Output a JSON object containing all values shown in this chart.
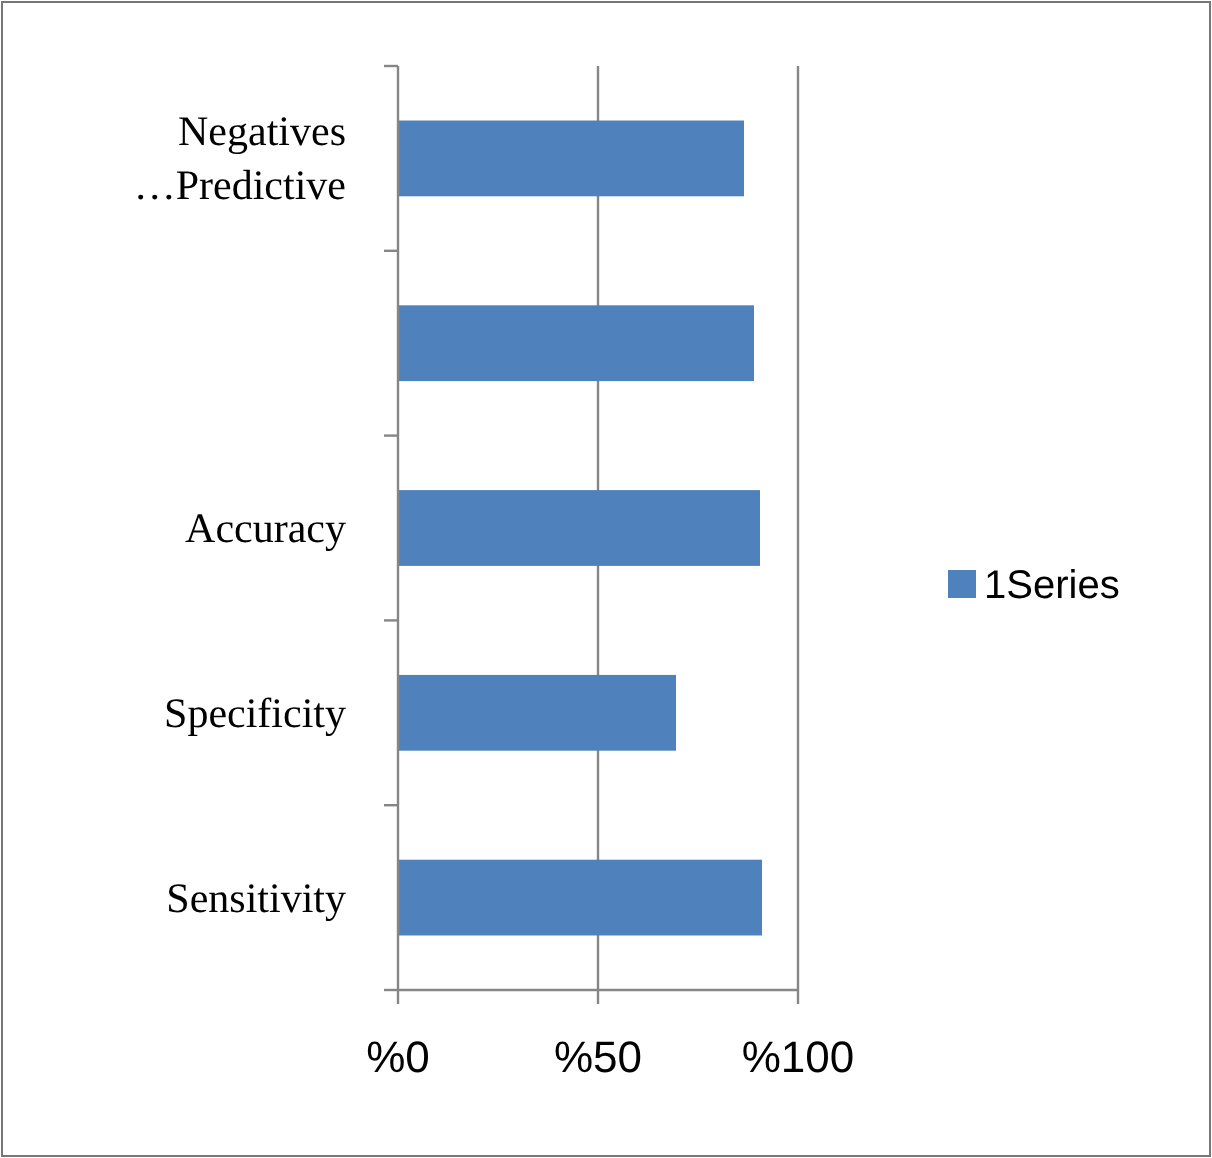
{
  "chart_data": {
    "type": "bar",
    "orientation": "horizontal",
    "categories": [
      "Negatives\n…Predictive",
      null,
      "Accuracy",
      "Specificity",
      "Sensitivity"
    ],
    "series": [
      {
        "name": "1Series",
        "color": "#4f81bd",
        "values": [
          86.5,
          89,
          90.5,
          69.5,
          91
        ]
      }
    ],
    "xlim": [
      0,
      100
    ],
    "xticks": [
      {
        "value": 0,
        "label": "%0"
      },
      {
        "value": 50,
        "label": "%50"
      },
      {
        "value": 100,
        "label": "%100"
      }
    ],
    "grid": "x",
    "legend": "right"
  }
}
